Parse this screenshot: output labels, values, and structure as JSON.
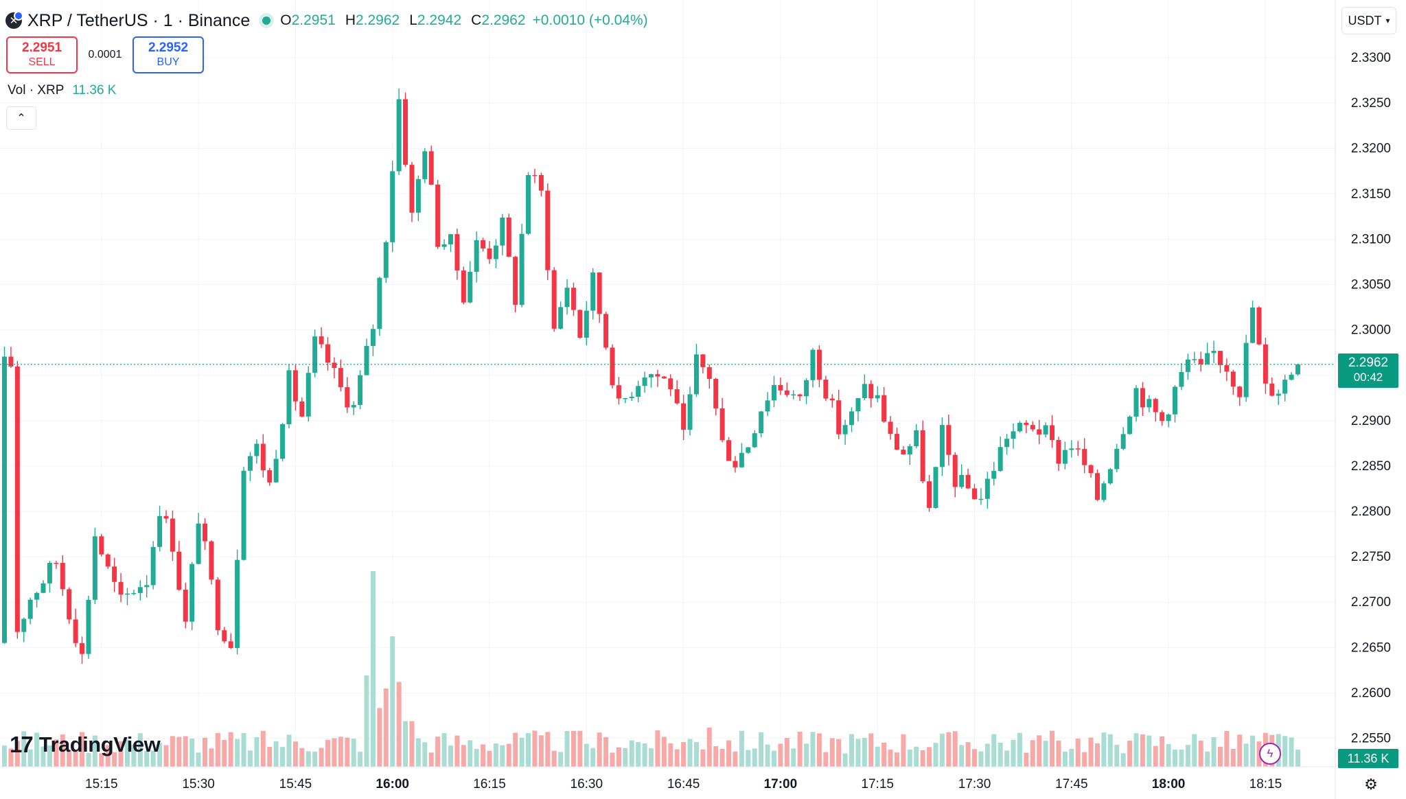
{
  "header": {
    "title": "XRP / TetherUS · 1 · Binance",
    "ohlc": [
      {
        "key": "O",
        "value": "2.2951"
      },
      {
        "key": "H",
        "value": "2.2962"
      },
      {
        "key": "L",
        "value": "2.2942"
      },
      {
        "key": "C",
        "value": "2.2962"
      }
    ],
    "change": "+0.0010 (+0.04%)"
  },
  "trade": {
    "sell_price": "2.2951",
    "sell_label": "SELL",
    "spread": "0.0001",
    "buy_price": "2.2952",
    "buy_label": "BUY"
  },
  "volume_legend": {
    "label": "Vol · XRP",
    "value": "11.36 K"
  },
  "currency": "USDT",
  "last_price": {
    "price": "2.2962",
    "countdown": "00:42"
  },
  "volume_tag": "11.36 K",
  "brand": "TradingView",
  "icons": {
    "symbol": "xrp-logo-icon",
    "collapse": "chevron-up-icon",
    "currency": "chevron-down-icon",
    "bolt": "lightning-icon",
    "settings": "gear-icon"
  },
  "colors": {
    "up": "#22ab94",
    "down": "#f23645",
    "vol_up": "#a9ddd3",
    "vol_down": "#f7a9a7",
    "grid": "#f0f3fa",
    "last": "#089981"
  },
  "chart_data": {
    "type": "candlestick",
    "y_ticks": [
      "2.2550",
      "2.2600",
      "2.2650",
      "2.2700",
      "2.2750",
      "2.2800",
      "2.2850",
      "2.2900",
      "2.2950",
      "2.3000",
      "2.3050",
      "2.3100",
      "2.3150",
      "2.3200",
      "2.3250",
      "2.3300"
    ],
    "x_ticks": [
      {
        "label": "15:15",
        "minute": 15,
        "bold": false
      },
      {
        "label": "15:30",
        "minute": 30,
        "bold": false
      },
      {
        "label": "15:45",
        "minute": 45,
        "bold": false
      },
      {
        "label": "16:00",
        "minute": 60,
        "bold": true
      },
      {
        "label": "16:15",
        "minute": 75,
        "bold": false
      },
      {
        "label": "16:30",
        "minute": 90,
        "bold": false
      },
      {
        "label": "16:45",
        "minute": 105,
        "bold": false
      },
      {
        "label": "17:00",
        "minute": 120,
        "bold": true
      },
      {
        "label": "17:15",
        "minute": 135,
        "bold": false
      },
      {
        "label": "17:30",
        "minute": 150,
        "bold": false
      },
      {
        "label": "17:45",
        "minute": 165,
        "bold": false
      },
      {
        "label": "18:00",
        "minute": 180,
        "bold": true
      },
      {
        "label": "18:15",
        "minute": 195,
        "bold": false
      }
    ],
    "ylim": [
      2.253,
      2.333
    ],
    "last_price": 2.2962,
    "close_path": [
      [
        2,
        2.267
      ],
      [
        4,
        2.2705
      ],
      [
        6,
        2.2725
      ],
      [
        8,
        2.2745
      ],
      [
        10,
        2.269
      ],
      [
        12,
        2.264
      ],
      [
        14,
        2.2775
      ],
      [
        16,
        2.2735
      ],
      [
        18,
        2.27
      ],
      [
        20,
        2.2715
      ],
      [
        22,
        2.2725
      ],
      [
        24,
        2.2805
      ],
      [
        26,
        2.2765
      ],
      [
        28,
        2.2675
      ],
      [
        30,
        2.2795
      ],
      [
        33,
        2.268
      ],
      [
        35,
        2.2655
      ],
      [
        37,
        2.2855
      ],
      [
        39,
        2.287
      ],
      [
        41,
        2.283
      ],
      [
        44,
        2.2945
      ],
      [
        46,
        2.2905
      ],
      [
        48,
        2.2985
      ],
      [
        50,
        2.2965
      ],
      [
        52,
        2.2935
      ],
      [
        54,
        2.2915
      ],
      [
        57,
        2.3005
      ],
      [
        59,
        2.3105
      ],
      [
        61,
        2.3255
      ],
      [
        63,
        2.3125
      ],
      [
        65,
        2.3205
      ],
      [
        67,
        2.31
      ],
      [
        69,
        2.3095
      ],
      [
        71,
        2.304
      ],
      [
        73,
        2.3095
      ],
      [
        75,
        2.3085
      ],
      [
        77,
        2.3115
      ],
      [
        79,
        2.3035
      ],
      [
        81,
        2.3175
      ],
      [
        83,
        2.315
      ],
      [
        85,
        2.3
      ],
      [
        87,
        2.305
      ],
      [
        89,
        2.2995
      ],
      [
        91,
        2.3055
      ],
      [
        93,
        2.2985
      ],
      [
        95,
        2.2915
      ],
      [
        97,
        2.2935
      ],
      [
        99,
        2.2955
      ],
      [
        101,
        2.295
      ],
      [
        103,
        2.294
      ],
      [
        105,
        2.288
      ],
      [
        107,
        2.2965
      ],
      [
        109,
        2.295
      ],
      [
        111,
        2.2875
      ],
      [
        113,
        2.2855
      ],
      [
        115,
        2.2875
      ],
      [
        117,
        2.2915
      ],
      [
        119,
        2.294
      ],
      [
        121,
        2.2935
      ],
      [
        123,
        2.292
      ],
      [
        125,
        2.2975
      ],
      [
        127,
        2.2935
      ],
      [
        129,
        2.289
      ],
      [
        131,
        2.2905
      ],
      [
        133,
        2.2935
      ],
      [
        135,
        2.2925
      ],
      [
        137,
        2.288
      ],
      [
        139,
        2.2865
      ],
      [
        141,
        2.288
      ],
      [
        143,
        2.28
      ],
      [
        145,
        2.2885
      ],
      [
        147,
        2.2835
      ],
      [
        149,
        2.2825
      ],
      [
        151,
        2.2815
      ],
      [
        153,
        2.285
      ],
      [
        155,
        2.2885
      ],
      [
        157,
        2.289
      ],
      [
        159,
        2.2895
      ],
      [
        161,
        2.2885
      ],
      [
        163,
        2.286
      ],
      [
        165,
        2.2875
      ],
      [
        167,
        2.285
      ],
      [
        169,
        2.2815
      ],
      [
        171,
        2.2855
      ],
      [
        173,
        2.2895
      ],
      [
        175,
        2.2935
      ],
      [
        177,
        2.2915
      ],
      [
        179,
        2.29
      ],
      [
        181,
        2.2935
      ],
      [
        183,
        2.2965
      ],
      [
        185,
        2.2955
      ],
      [
        187,
        2.2975
      ],
      [
        189,
        2.296
      ],
      [
        191,
        2.2935
      ],
      [
        193,
        2.3025
      ],
      [
        195,
        2.2935
      ],
      [
        197,
        2.2935
      ],
      [
        199,
        2.2955
      ],
      [
        200,
        2.2962
      ]
    ],
    "volume": {
      "ymax": 30000,
      "base": 4000,
      "spikes": [
        [
          56,
          14000,
          1
        ],
        [
          57,
          30000,
          1
        ],
        [
          58,
          9000,
          0
        ],
        [
          59,
          12000,
          0
        ],
        [
          60,
          20000,
          1
        ],
        [
          61,
          13000,
          0
        ],
        [
          62,
          7000,
          1
        ],
        [
          63,
          7000,
          0
        ],
        [
          88,
          5500,
          0
        ],
        [
          109,
          6000,
          0
        ],
        [
          153,
          5000,
          1
        ],
        [
          174,
          4000,
          0
        ],
        [
          199,
          4500,
          1
        ]
      ],
      "last_value": 11360
    }
  }
}
